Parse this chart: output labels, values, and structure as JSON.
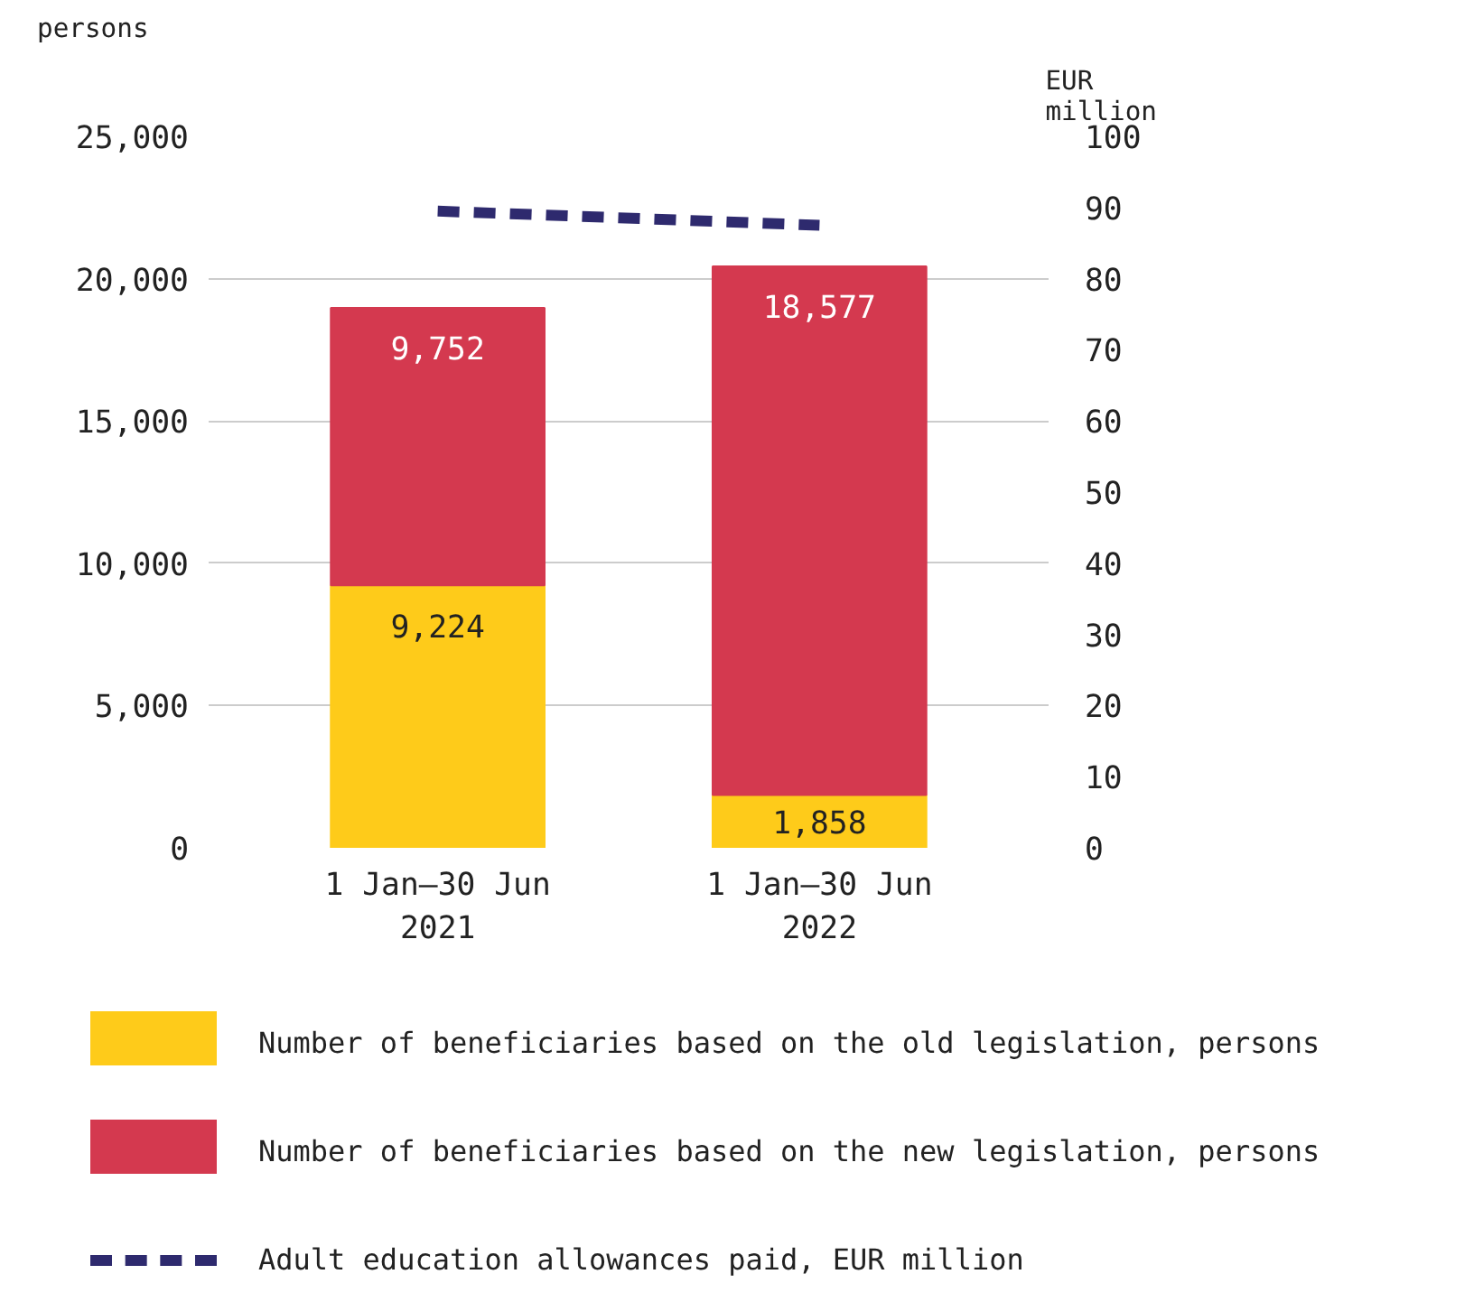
{
  "chart_data": {
    "type": "bar",
    "stacked": true,
    "categories": [
      "1 Jan–30 Jun\n2021",
      "1 Jan–30 Jun\n2022"
    ],
    "ylabel": "persons",
    "y2label": "EUR\nmillion",
    "ylim": [
      0,
      25000
    ],
    "yticks": [
      {
        "value": 0,
        "label": "0"
      },
      {
        "value": 5000,
        "label": "5,000"
      },
      {
        "value": 10000,
        "label": "10,000"
      },
      {
        "value": 15000,
        "label": "15,000"
      },
      {
        "value": 20000,
        "label": "20,000"
      },
      {
        "value": 25000,
        "label": "25,000"
      }
    ],
    "y2lim": [
      0,
      100
    ],
    "y2ticks": [
      0,
      10,
      20,
      30,
      40,
      50,
      60,
      70,
      80,
      90,
      100
    ],
    "grid": "y",
    "legend": "bottom",
    "series": [
      {
        "name": "Number of beneficiaries based on the old legislation, persons",
        "color": "#fecb1a",
        "values": [
          9224,
          1858
        ],
        "value_labels": [
          "9,224",
          "1,858"
        ]
      },
      {
        "name": "Number of beneficiaries based on the new legislation, persons",
        "color": "#d4394f",
        "values": [
          9752,
          18577
        ],
        "value_labels": [
          "9,752",
          "18,577"
        ]
      },
      {
        "name": "Adult education allowances paid, EUR million",
        "type": "line",
        "axis": "y2",
        "color": "#2e2a6e",
        "line_style": "dashed",
        "values": [
          89.5,
          87.5
        ]
      }
    ]
  }
}
